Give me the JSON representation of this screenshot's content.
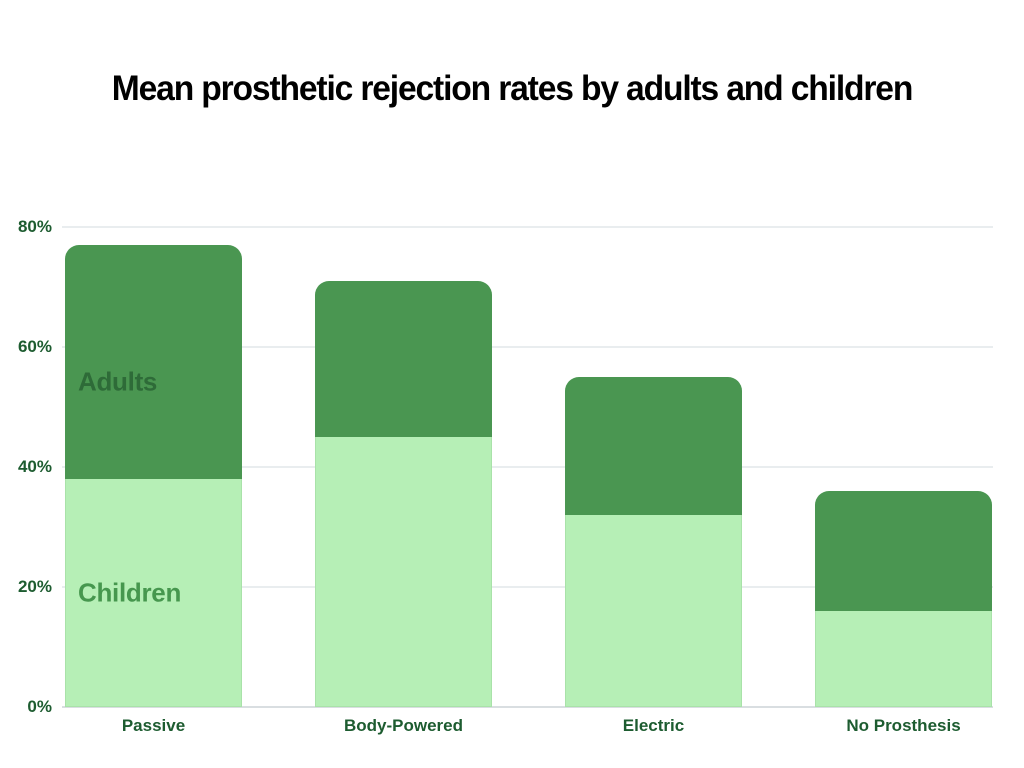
{
  "page": {
    "background_color": "#ffffff"
  },
  "chart_data": {
    "type": "bar",
    "stacked": true,
    "title": "Mean prosthetic rejection rates by adults and children",
    "title_color": "#000000",
    "categories": [
      "Passive",
      "Body-Powered",
      "Electric",
      "No Prosthesis"
    ],
    "series": [
      {
        "name": "Children",
        "values": [
          38,
          45,
          32,
          16
        ],
        "color": "#b6efb6",
        "label_color": "#46974e"
      },
      {
        "name": "Adults",
        "values": [
          39,
          26,
          23,
          20
        ],
        "color": "#4a9651",
        "label_color": "#2e6b38"
      }
    ],
    "totals": [
      77,
      71,
      55,
      36
    ],
    "xlabel": "",
    "ylabel": "",
    "ylim": [
      0,
      80
    ],
    "yticks": [
      0,
      20,
      40,
      60,
      80
    ],
    "ytick_labels": [
      "0%",
      "20%",
      "40%",
      "60%",
      "80%"
    ],
    "axis_label_color": "#1d5c30",
    "grid": true,
    "gridline_color": "#e9edef",
    "baseline_color": "#d9dee1",
    "legend_position": "annotations-inside-first-bar",
    "annotations": [
      {
        "text": "Adults",
        "category": "Passive",
        "series": "Adults"
      },
      {
        "text": "Children",
        "category": "Passive",
        "series": "Children"
      }
    ]
  }
}
